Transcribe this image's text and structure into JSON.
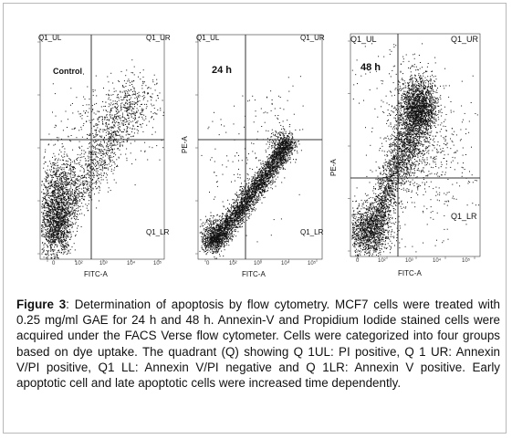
{
  "figure": {
    "caption": {
      "label": "Figure 3",
      "text": ": Determination of apoptosis by flow cytometry. MCF7 cells were treated with 0.25 mg/ml GAE for 24 h and 48 h. Annexin-V and Propidium Iodide stained cells were acquired under the FACS Verse flow cytometer. Cells were categorized into four groups based on dye uptake. The quadrant (Q) showing Q 1UL: PI positive, Q 1 UR: Annexin V/PI positive, Q1 LL: Annexin V/PI negative and Q 1LR: Annexin V positive. Early apoptotic cell and late apoptotic cells were increased time dependently."
    },
    "panels": [
      {
        "condition": "Control",
        "quadrant_labels": {
          "ul": "Q1_UL",
          "ur": "Q1_UR",
          "lr": "Q1_LR"
        },
        "x_axis_label": "FITC-A",
        "y_axis_label": "PE-A",
        "x_tick_labels": [
          "0",
          "10²",
          "10³",
          "10⁴",
          "10⁵"
        ],
        "y_tick_labels": [
          "10⁵",
          "10⁴",
          "10³",
          "10²",
          "0"
        ]
      },
      {
        "condition": "24 h",
        "quadrant_labels": {
          "ul": "Q1_UL",
          "ur": "Q1_UR",
          "lr": "Q1_LR"
        },
        "x_axis_label": "FITC-A",
        "y_axis_label": "PE-A",
        "x_tick_labels": [
          "0",
          "10²",
          "10³",
          "10⁴",
          "10⁵"
        ],
        "y_tick_labels": [
          "10⁵",
          "10⁴",
          "10³",
          "10²",
          "0"
        ]
      },
      {
        "condition": "48 h",
        "quadrant_labels": {
          "ul": "Q1_UL",
          "ur": "Q1_UR",
          "lr": "Q1_LR"
        },
        "x_axis_label": "FITC-A",
        "y_axis_label": "PE-A",
        "x_tick_labels": [
          "0",
          "10²",
          "10³",
          "10⁴",
          "10⁵"
        ],
        "y_tick_labels": [
          "10⁵",
          "10⁴",
          "10³",
          "10²",
          "0"
        ]
      }
    ],
    "colors": {
      "dots": "#111111",
      "border": "#b9b9b9",
      "gate": "#333333"
    }
  }
}
